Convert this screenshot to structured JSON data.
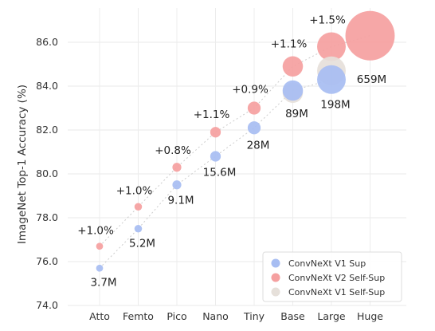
{
  "chart_data": {
    "type": "scatter",
    "ylabel": "ImageNet Top-1 Accuracy (%)",
    "xlabel": "",
    "categories": [
      "Atto",
      "Femto",
      "Pico",
      "Nano",
      "Tiny",
      "Base",
      "Large",
      "Huge"
    ],
    "yticks": [
      "74.0",
      "76.0",
      "78.0",
      "80.0",
      "82.0",
      "84.0",
      "86.0"
    ],
    "ylim": [
      74.0,
      87.3
    ],
    "grid": true,
    "legend_position": "bottom-right",
    "series": [
      {
        "name": "ConvNeXt V1 Sup",
        "color": "#a7bdf2",
        "points": [
          {
            "category": "Atto",
            "y": 75.7
          },
          {
            "category": "Femto",
            "y": 77.5
          },
          {
            "category": "Pico",
            "y": 79.5
          },
          {
            "category": "Nano",
            "y": 80.8
          },
          {
            "category": "Tiny",
            "y": 82.1
          },
          {
            "category": "Base",
            "y": 83.8
          },
          {
            "category": "Large",
            "y": 84.3
          }
        ]
      },
      {
        "name": "ConvNeXt V2 Self-Sup",
        "color": "#f5a0a0",
        "points": [
          {
            "category": "Atto",
            "y": 76.7
          },
          {
            "category": "Femto",
            "y": 78.5
          },
          {
            "category": "Pico",
            "y": 80.3
          },
          {
            "category": "Nano",
            "y": 81.9
          },
          {
            "category": "Tiny",
            "y": 83.0
          },
          {
            "category": "Base",
            "y": 84.9
          },
          {
            "category": "Large",
            "y": 85.8
          },
          {
            "category": "Huge",
            "y": 86.3
          }
        ]
      },
      {
        "name": "ConvNeXt V1 Self-Sup",
        "color": "#e6e0da",
        "points": [
          {
            "category": "Base",
            "y": 83.7
          },
          {
            "category": "Large",
            "y": 84.7
          }
        ]
      }
    ],
    "params": [
      {
        "category": "Atto",
        "label": "3.7M",
        "value_m": 3.7
      },
      {
        "category": "Femto",
        "label": "5.2M",
        "value_m": 5.2
      },
      {
        "category": "Pico",
        "label": "9.1M",
        "value_m": 9.1
      },
      {
        "category": "Nano",
        "label": "15.6M",
        "value_m": 15.6
      },
      {
        "category": "Tiny",
        "label": "28M",
        "value_m": 28
      },
      {
        "category": "Base",
        "label": "89M",
        "value_m": 89
      },
      {
        "category": "Large",
        "label": "198M",
        "value_m": 198
      },
      {
        "category": "Huge",
        "label": "659M",
        "value_m": 659
      }
    ],
    "gains": [
      {
        "category": "Atto",
        "label": "+1.0%"
      },
      {
        "category": "Femto",
        "label": "+1.0%"
      },
      {
        "category": "Pico",
        "label": "+0.8%"
      },
      {
        "category": "Nano",
        "label": "+1.1%"
      },
      {
        "category": "Tiny",
        "label": "+0.9%"
      },
      {
        "category": "Base",
        "label": "+1.1%"
      },
      {
        "category": "Large",
        "label": "+1.5%"
      }
    ]
  }
}
